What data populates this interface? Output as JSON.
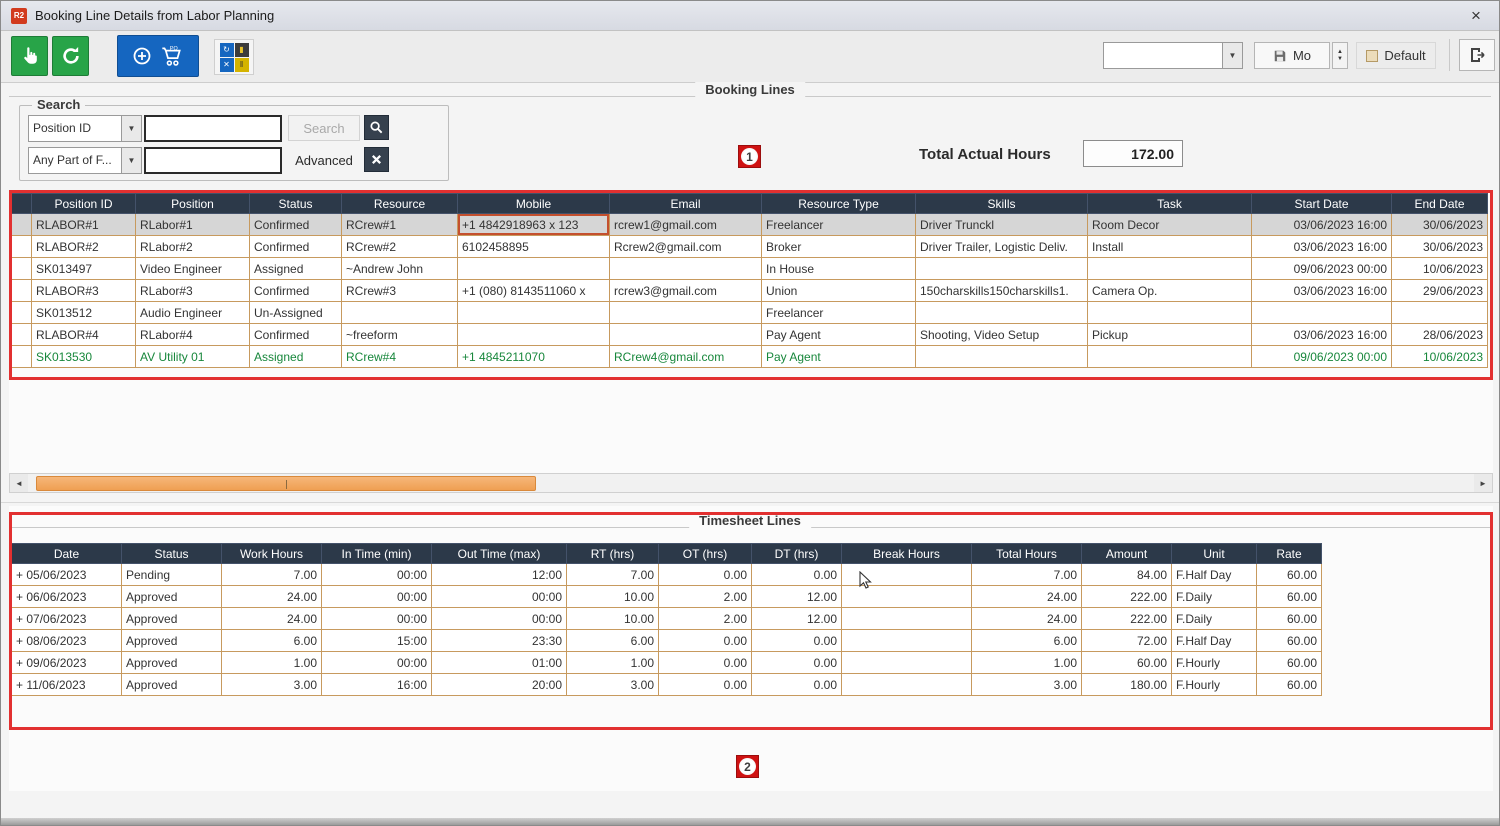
{
  "window": {
    "title": "Booking Line Details from Labor Planning",
    "app_icon": "R2",
    "close": "×"
  },
  "toolbar": {
    "po_label": "PO",
    "combo_value": "",
    "save_label": "Mo",
    "default_label": "Default"
  },
  "booking": {
    "group_label": "Booking Lines",
    "badge": "1",
    "search": {
      "legend": "Search",
      "field1": "Position ID",
      "field2": "Any Part of F...",
      "value1": "",
      "value2": "",
      "search_label": "Search",
      "advanced_label": "Advanced"
    },
    "total_label": "Total Actual Hours",
    "total_value": "172.00",
    "columns": [
      "Position ID",
      "Position",
      "Status",
      "Resource",
      "Mobile",
      "Email",
      "Resource Type",
      "Skills",
      "Task",
      "Start Date",
      "End Date"
    ],
    "rows": [
      {
        "selected": true,
        "outlined_cell": 4,
        "cells": [
          "RLABOR#1",
          "RLabor#1",
          "Confirmed",
          "RCrew#1",
          "+1 4842918963 x 123",
          "rcrew1@gmail.com",
          "Freelancer",
          "Driver Trunckl",
          "Room Decor",
          "03/06/2023 16:00",
          "30/06/2023"
        ]
      },
      {
        "cells": [
          "RLABOR#2",
          "RLabor#2",
          "Confirmed",
          "RCrew#2",
          "6102458895",
          "Rcrew2@gmail.com",
          "Broker",
          "Driver Trailer, Logistic Deliv.",
          "Install",
          "03/06/2023 16:00",
          "30/06/2023"
        ]
      },
      {
        "cells": [
          "SK013497",
          "Video Engineer",
          "Assigned",
          "~Andrew John",
          "",
          "",
          "In House",
          "",
          "",
          "09/06/2023 00:00",
          "10/06/2023"
        ]
      },
      {
        "cells": [
          "RLABOR#3",
          "RLabor#3",
          "Confirmed",
          "RCrew#3",
          "+1 (080) 8143511060 x",
          "rcrew3@gmail.com",
          "Union",
          "150charskills150charskills1.",
          "Camera Op.",
          "03/06/2023 16:00",
          "29/06/2023"
        ]
      },
      {
        "cells": [
          "SK013512",
          "Audio Engineer",
          "Un-Assigned",
          "",
          "",
          "",
          "Freelancer",
          "",
          "",
          "",
          ""
        ]
      },
      {
        "cells": [
          "RLABOR#4",
          "RLabor#4",
          "Confirmed",
          "~freeform",
          "",
          "",
          "Pay Agent",
          "Shooting, Video Setup",
          "Pickup",
          "03/06/2023 16:00",
          "28/06/2023"
        ]
      },
      {
        "green": true,
        "cells": [
          "SK013530",
          "AV Utility 01",
          "Assigned",
          "RCrew#4",
          "+1 4845211070",
          "RCrew4@gmail.com",
          "Pay Agent",
          "",
          "",
          "09/06/2023 00:00",
          "10/06/2023"
        ]
      }
    ]
  },
  "timesheet": {
    "group_label": "Timesheet Lines",
    "badge": "2",
    "columns": [
      "Date",
      "Status",
      "Work Hours",
      "In Time (min)",
      "Out Time (max)",
      "RT (hrs)",
      "OT (hrs)",
      "DT (hrs)",
      "Break Hours",
      "Total Hours",
      "Amount",
      "Unit",
      "Rate"
    ],
    "rows": [
      {
        "cells": [
          "+ 05/06/2023",
          "Pending",
          "7.00",
          "00:00",
          "12:00",
          "7.00",
          "0.00",
          "0.00",
          "",
          "7.00",
          "84.00",
          "F.Half Day",
          "60.00"
        ]
      },
      {
        "cells": [
          "+ 06/06/2023",
          "Approved",
          "24.00",
          "00:00",
          "00:00",
          "10.00",
          "2.00",
          "12.00",
          "",
          "24.00",
          "222.00",
          "F.Daily",
          "60.00"
        ]
      },
      {
        "cells": [
          "+ 07/06/2023",
          "Approved",
          "24.00",
          "00:00",
          "00:00",
          "10.00",
          "2.00",
          "12.00",
          "",
          "24.00",
          "222.00",
          "F.Daily",
          "60.00"
        ]
      },
      {
        "cells": [
          "+ 08/06/2023",
          "Approved",
          "6.00",
          "15:00",
          "23:30",
          "6.00",
          "0.00",
          "0.00",
          "",
          "6.00",
          "72.00",
          "F.Half Day",
          "60.00"
        ]
      },
      {
        "cells": [
          "+ 09/06/2023",
          "Approved",
          "1.00",
          "00:00",
          "01:00",
          "1.00",
          "0.00",
          "0.00",
          "",
          "1.00",
          "60.00",
          "F.Hourly",
          "60.00"
        ]
      },
      {
        "cells": [
          "+ 11/06/2023",
          "Approved",
          "3.00",
          "16:00",
          "20:00",
          "3.00",
          "0.00",
          "0.00",
          "",
          "3.00",
          "180.00",
          "F.Hourly",
          "60.00"
        ]
      }
    ]
  },
  "colors": {
    "accent_red": "#e23030",
    "header_navy": "#2c3949",
    "grid_line_tan": "#c79a5e",
    "scroll_thumb_orange": "#ef9f52",
    "green_row": "#17873b",
    "button_green": "#28a448",
    "button_blue": "#1566c0"
  }
}
